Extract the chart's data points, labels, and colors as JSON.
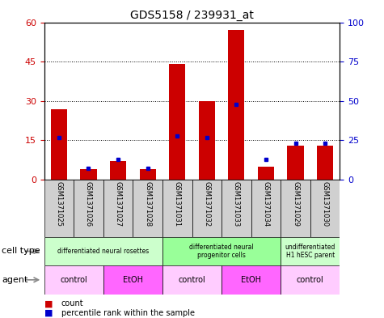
{
  "title": "GDS5158 / 239931_at",
  "samples": [
    "GSM1371025",
    "GSM1371026",
    "GSM1371027",
    "GSM1371028",
    "GSM1371031",
    "GSM1371032",
    "GSM1371033",
    "GSM1371034",
    "GSM1371029",
    "GSM1371030"
  ],
  "counts": [
    27,
    4,
    7,
    4,
    44,
    30,
    57,
    5,
    13,
    13
  ],
  "percentile_ranks": [
    27,
    7,
    13,
    7,
    28,
    27,
    48,
    13,
    23,
    23
  ],
  "ylim_left": [
    0,
    60
  ],
  "ylim_right": [
    0,
    100
  ],
  "yticks_left": [
    0,
    15,
    30,
    45,
    60
  ],
  "yticks_right": [
    0,
    25,
    50,
    75,
    100
  ],
  "cell_type_groups": [
    {
      "label": "differentiated neural rosettes",
      "start": 0,
      "end": 4,
      "color": "#ccffcc"
    },
    {
      "label": "differentiated neural\nprogenitor cells",
      "start": 4,
      "end": 8,
      "color": "#99ff99"
    },
    {
      "label": "undifferentiated\nH1 hESC parent",
      "start": 8,
      "end": 10,
      "color": "#ccffcc"
    }
  ],
  "agent_groups": [
    {
      "label": "control",
      "start": 0,
      "end": 2,
      "color": "#ffccff"
    },
    {
      "label": "EtOH",
      "start": 2,
      "end": 4,
      "color": "#ff66ff"
    },
    {
      "label": "control",
      "start": 4,
      "end": 6,
      "color": "#ffccff"
    },
    {
      "label": "EtOH",
      "start": 6,
      "end": 8,
      "color": "#ff66ff"
    },
    {
      "label": "control",
      "start": 8,
      "end": 10,
      "color": "#ffccff"
    }
  ],
  "bar_color": "#cc0000",
  "percentile_color": "#0000cc",
  "tick_label_color_left": "#cc0000",
  "tick_label_color_right": "#0000cc",
  "bar_width": 0.55,
  "sample_bg_color": "#d0d0d0",
  "title_fontsize": 10,
  "axis_fontsize": 8,
  "label_fontsize": 7,
  "row_label_fontsize": 8
}
